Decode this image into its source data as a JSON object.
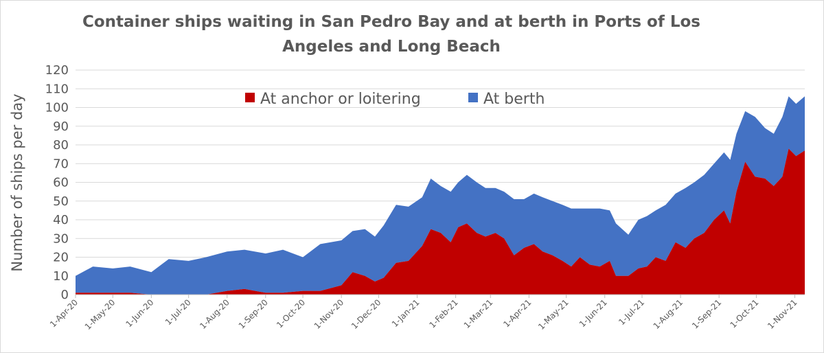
{
  "chart_data": {
    "type": "area",
    "stacked": true,
    "title": [
      "Container ships waiting in San Pedro Bay and at berth in Ports of Los",
      "Angeles and Long Beach"
    ],
    "xlabel": "",
    "ylabel": "Number of ships per day",
    "ylim": [
      0,
      120
    ],
    "yticks": [
      0,
      10,
      20,
      30,
      40,
      50,
      60,
      70,
      80,
      90,
      100,
      110,
      120
    ],
    "xlim": [
      "2020-04-01",
      "2021-11-09"
    ],
    "xticks": [
      {
        "date": "2020-04-01",
        "label": "1-Apr-20"
      },
      {
        "date": "2020-05-01",
        "label": "1-May-20"
      },
      {
        "date": "2020-06-01",
        "label": "1-Jun-20"
      },
      {
        "date": "2020-07-01",
        "label": "1-Jul-20"
      },
      {
        "date": "2020-08-01",
        "label": "1-Aug-20"
      },
      {
        "date": "2020-09-01",
        "label": "1-Sep-20"
      },
      {
        "date": "2020-10-01",
        "label": "1-Oct-20"
      },
      {
        "date": "2020-11-01",
        "label": "1-Nov-20"
      },
      {
        "date": "2020-12-01",
        "label": "1-Dec-20"
      },
      {
        "date": "2021-01-01",
        "label": "1-Jan-21"
      },
      {
        "date": "2021-02-01",
        "label": "1-Feb-21"
      },
      {
        "date": "2021-03-01",
        "label": "1-Mar-21"
      },
      {
        "date": "2021-04-01",
        "label": "1-Apr-21"
      },
      {
        "date": "2021-05-01",
        "label": "1-May-21"
      },
      {
        "date": "2021-06-01",
        "label": "1-Jun-21"
      },
      {
        "date": "2021-07-01",
        "label": "1-Jul-21"
      },
      {
        "date": "2021-08-01",
        "label": "1-Aug-21"
      },
      {
        "date": "2021-09-01",
        "label": "1-Sep-21"
      },
      {
        "date": "2021-10-01",
        "label": "1-Oct-21"
      },
      {
        "date": "2021-11-01",
        "label": "1-Nov-21"
      }
    ],
    "grid": true,
    "legend_position": "top-center",
    "series": [
      {
        "name": "At anchor or loitering",
        "color": "#c00000",
        "points": [
          [
            "2020-04-01",
            1
          ],
          [
            "2020-04-15",
            1
          ],
          [
            "2020-05-01",
            1
          ],
          [
            "2020-05-15",
            1
          ],
          [
            "2020-06-01",
            0
          ],
          [
            "2020-06-15",
            0
          ],
          [
            "2020-07-01",
            0
          ],
          [
            "2020-07-15",
            0
          ],
          [
            "2020-08-01",
            2
          ],
          [
            "2020-08-15",
            3
          ],
          [
            "2020-09-01",
            1
          ],
          [
            "2020-09-15",
            1
          ],
          [
            "2020-10-01",
            2
          ],
          [
            "2020-10-15",
            2
          ],
          [
            "2020-11-01",
            5
          ],
          [
            "2020-11-10",
            12
          ],
          [
            "2020-11-20",
            10
          ],
          [
            "2020-11-28",
            7
          ],
          [
            "2020-12-05",
            9
          ],
          [
            "2020-12-15",
            17
          ],
          [
            "2020-12-25",
            18
          ],
          [
            "2021-01-05",
            26
          ],
          [
            "2021-01-12",
            35
          ],
          [
            "2021-01-20",
            33
          ],
          [
            "2021-01-28",
            28
          ],
          [
            "2021-02-03",
            36
          ],
          [
            "2021-02-10",
            38
          ],
          [
            "2021-02-18",
            33
          ],
          [
            "2021-02-25",
            31
          ],
          [
            "2021-03-05",
            33
          ],
          [
            "2021-03-12",
            30
          ],
          [
            "2021-03-20",
            21
          ],
          [
            "2021-03-28",
            25
          ],
          [
            "2021-04-05",
            27
          ],
          [
            "2021-04-12",
            23
          ],
          [
            "2021-04-20",
            21
          ],
          [
            "2021-04-28",
            18
          ],
          [
            "2021-05-05",
            15
          ],
          [
            "2021-05-12",
            20
          ],
          [
            "2021-05-20",
            16
          ],
          [
            "2021-05-28",
            15
          ],
          [
            "2021-06-05",
            18
          ],
          [
            "2021-06-10",
            10
          ],
          [
            "2021-06-20",
            10
          ],
          [
            "2021-06-28",
            14
          ],
          [
            "2021-07-05",
            15
          ],
          [
            "2021-07-12",
            20
          ],
          [
            "2021-07-20",
            18
          ],
          [
            "2021-07-28",
            28
          ],
          [
            "2021-08-05",
            25
          ],
          [
            "2021-08-12",
            30
          ],
          [
            "2021-08-20",
            33
          ],
          [
            "2021-08-28",
            40
          ],
          [
            "2021-09-05",
            45
          ],
          [
            "2021-09-10",
            38
          ],
          [
            "2021-09-15",
            55
          ],
          [
            "2021-09-22",
            71
          ],
          [
            "2021-09-30",
            63
          ],
          [
            "2021-10-08",
            62
          ],
          [
            "2021-10-15",
            58
          ],
          [
            "2021-10-22",
            63
          ],
          [
            "2021-10-27",
            78
          ],
          [
            "2021-11-02",
            74
          ],
          [
            "2021-11-09",
            77
          ]
        ]
      },
      {
        "name": "At berth",
        "color": "#4472c4",
        "points": [
          [
            "2020-04-01",
            9
          ],
          [
            "2020-04-15",
            14
          ],
          [
            "2020-05-01",
            13
          ],
          [
            "2020-05-15",
            14
          ],
          [
            "2020-06-01",
            12
          ],
          [
            "2020-06-15",
            19
          ],
          [
            "2020-07-01",
            18
          ],
          [
            "2020-07-15",
            20
          ],
          [
            "2020-08-01",
            21
          ],
          [
            "2020-08-15",
            21
          ],
          [
            "2020-09-01",
            21
          ],
          [
            "2020-09-15",
            23
          ],
          [
            "2020-10-01",
            18
          ],
          [
            "2020-10-15",
            25
          ],
          [
            "2020-11-01",
            24
          ],
          [
            "2020-11-10",
            22
          ],
          [
            "2020-11-20",
            25
          ],
          [
            "2020-11-28",
            24
          ],
          [
            "2020-12-05",
            28
          ],
          [
            "2020-12-15",
            31
          ],
          [
            "2020-12-25",
            29
          ],
          [
            "2021-01-05",
            26
          ],
          [
            "2021-01-12",
            27
          ],
          [
            "2021-01-20",
            25
          ],
          [
            "2021-01-28",
            27
          ],
          [
            "2021-02-03",
            24
          ],
          [
            "2021-02-10",
            26
          ],
          [
            "2021-02-18",
            27
          ],
          [
            "2021-02-25",
            26
          ],
          [
            "2021-03-05",
            24
          ],
          [
            "2021-03-12",
            25
          ],
          [
            "2021-03-20",
            30
          ],
          [
            "2021-03-28",
            26
          ],
          [
            "2021-04-05",
            27
          ],
          [
            "2021-04-12",
            29
          ],
          [
            "2021-04-20",
            29
          ],
          [
            "2021-04-28",
            30
          ],
          [
            "2021-05-05",
            31
          ],
          [
            "2021-05-12",
            26
          ],
          [
            "2021-05-20",
            30
          ],
          [
            "2021-05-28",
            31
          ],
          [
            "2021-06-05",
            27
          ],
          [
            "2021-06-10",
            28
          ],
          [
            "2021-06-20",
            22
          ],
          [
            "2021-06-28",
            26
          ],
          [
            "2021-07-05",
            27
          ],
          [
            "2021-07-12",
            25
          ],
          [
            "2021-07-20",
            30
          ],
          [
            "2021-07-28",
            26
          ],
          [
            "2021-08-05",
            32
          ],
          [
            "2021-08-12",
            30
          ],
          [
            "2021-08-20",
            31
          ],
          [
            "2021-08-28",
            30
          ],
          [
            "2021-09-05",
            31
          ],
          [
            "2021-09-10",
            34
          ],
          [
            "2021-09-15",
            31
          ],
          [
            "2021-09-22",
            27
          ],
          [
            "2021-09-30",
            32
          ],
          [
            "2021-10-08",
            27
          ],
          [
            "2021-10-15",
            28
          ],
          [
            "2021-10-22",
            32
          ],
          [
            "2021-10-27",
            28
          ],
          [
            "2021-11-02",
            28
          ],
          [
            "2021-11-09",
            29
          ]
        ]
      }
    ]
  }
}
